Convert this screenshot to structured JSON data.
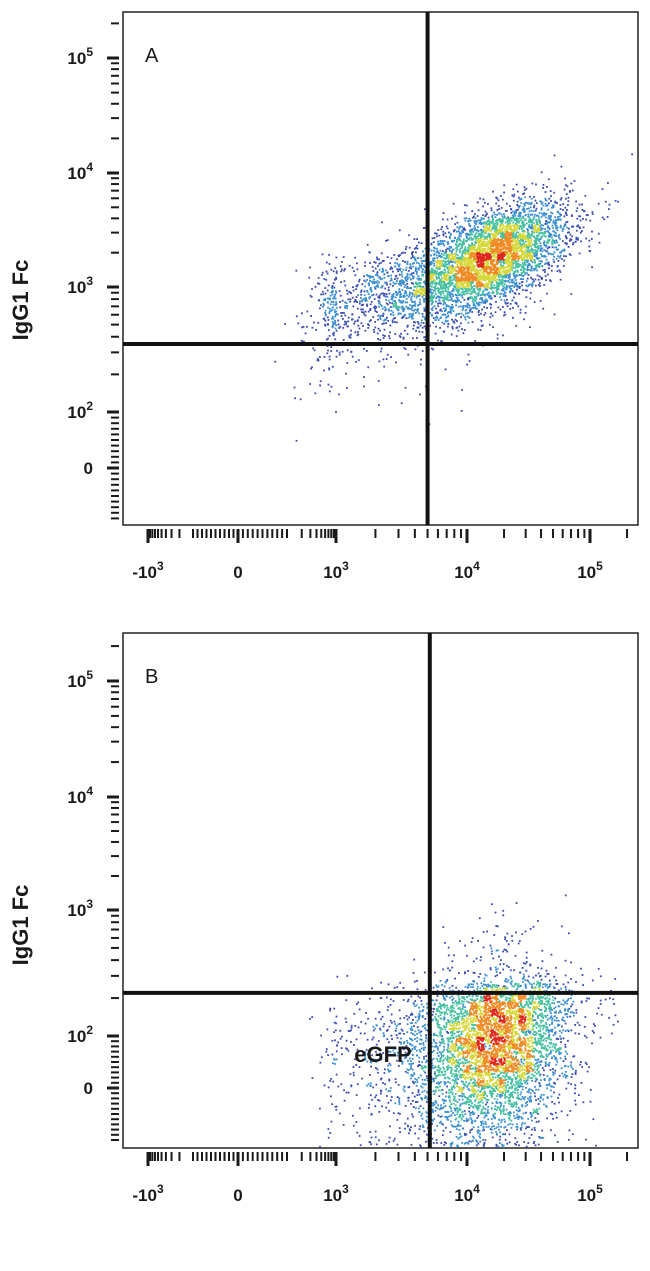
{
  "chart_data": [
    {
      "type": "scatter",
      "panel_label": "A",
      "xlabel": "",
      "ylabel": "IgG1 Fc",
      "x_ticks": [
        {
          "label": "-10",
          "sup": "3",
          "value": -1000
        },
        {
          "label": "0",
          "sup": "",
          "value": 0
        },
        {
          "label": "10",
          "sup": "3",
          "value": 1000
        },
        {
          "label": "10",
          "sup": "4",
          "value": 10000
        },
        {
          "label": "10",
          "sup": "5",
          "value": 100000
        }
      ],
      "y_ticks": [
        {
          "label": "0",
          "sup": "",
          "value": 0
        },
        {
          "label": "10",
          "sup": "2",
          "value": 100
        },
        {
          "label": "10",
          "sup": "3",
          "value": 1000
        },
        {
          "label": "10",
          "sup": "4",
          "value": 10000
        },
        {
          "label": "10",
          "sup": "5",
          "value": 100000
        }
      ],
      "x_scale": "biexponential",
      "y_scale": "biexponential",
      "xlim": [
        -1500,
        200000
      ],
      "ylim": [
        -200,
        200000
      ],
      "quadrant_gate": {
        "x": 5000,
        "y": 350
      },
      "populations": [
        {
          "center": [
            15000,
            1800
          ],
          "spread_decades": [
            0.32,
            0.24
          ],
          "correlation": 0.55,
          "events": 4200
        },
        {
          "center": [
            2500,
            900
          ],
          "spread_decades": [
            0.38,
            0.22
          ],
          "correlation": 0.35,
          "events": 900
        },
        {
          "center": [
            1200,
            250
          ],
          "spread_decades": [
            0.5,
            0.35
          ],
          "correlation": 0.2,
          "events": 60
        }
      ],
      "density_colors": [
        "#3a4bb0",
        "#3a8fd0",
        "#45c0a0",
        "#d6d83a",
        "#f08a24",
        "#e0261f"
      ]
    },
    {
      "type": "scatter",
      "panel_label": "B",
      "xlabel": "eGFP",
      "ylabel": "IgG1 Fc",
      "x_ticks": [
        {
          "label": "-10",
          "sup": "3",
          "value": -1000
        },
        {
          "label": "0",
          "sup": "",
          "value": 0
        },
        {
          "label": "10",
          "sup": "3",
          "value": 1000
        },
        {
          "label": "10",
          "sup": "4",
          "value": 10000
        },
        {
          "label": "10",
          "sup": "5",
          "value": 100000
        }
      ],
      "y_ticks": [
        {
          "label": "0",
          "sup": "",
          "value": 0
        },
        {
          "label": "10",
          "sup": "2",
          "value": 100
        },
        {
          "label": "10",
          "sup": "3",
          "value": 1000
        },
        {
          "label": "10",
          "sup": "4",
          "value": 10000
        },
        {
          "label": "10",
          "sup": "5",
          "value": 100000
        }
      ],
      "x_scale": "biexponential",
      "y_scale": "biexponential",
      "xlim": [
        -1500,
        200000
      ],
      "ylim": [
        -200,
        200000
      ],
      "quadrant_gate": {
        "x": 5200,
        "y": 220
      },
      "populations": [
        {
          "center": [
            17000,
            80
          ],
          "spread_decades": [
            0.3,
            0.28
          ],
          "correlation": 0.2,
          "events": 4300
        },
        {
          "center": [
            3500,
            70
          ],
          "spread_decades": [
            0.35,
            0.25
          ],
          "correlation": 0.2,
          "events": 600
        },
        {
          "center": [
            18000,
            400
          ],
          "spread_decades": [
            0.25,
            0.22
          ],
          "correlation": 0.1,
          "events": 120
        }
      ],
      "density_colors": [
        "#3a4bb0",
        "#3a8fd0",
        "#45c0a0",
        "#d6d83a",
        "#f08a24",
        "#e0261f"
      ]
    }
  ]
}
